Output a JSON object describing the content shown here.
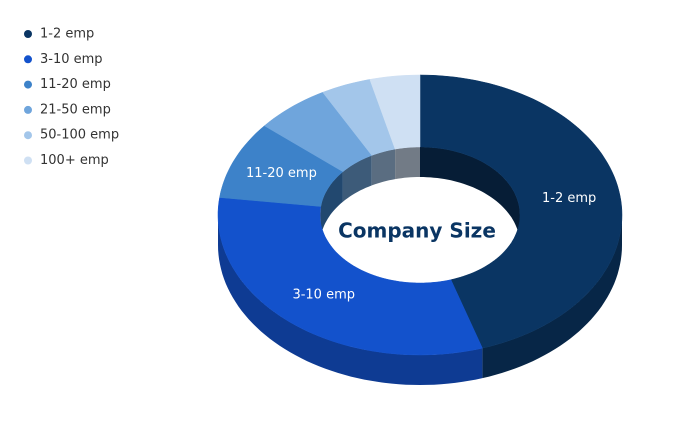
{
  "chart_data": {
    "type": "donut3d",
    "title": "Company Size",
    "categories": [
      "1-2 emp",
      "3-10 emp",
      "11-20 emp",
      "21-50 emp",
      "50-100 emp",
      "100+ emp"
    ],
    "values": [
      45,
      32,
      9,
      6,
      4,
      4
    ],
    "colors": [
      "#0a3563",
      "#1352cc",
      "#3d82c9",
      "#6fa5dc",
      "#a3c6ea",
      "#cfe0f3"
    ],
    "legend": "top-left"
  }
}
